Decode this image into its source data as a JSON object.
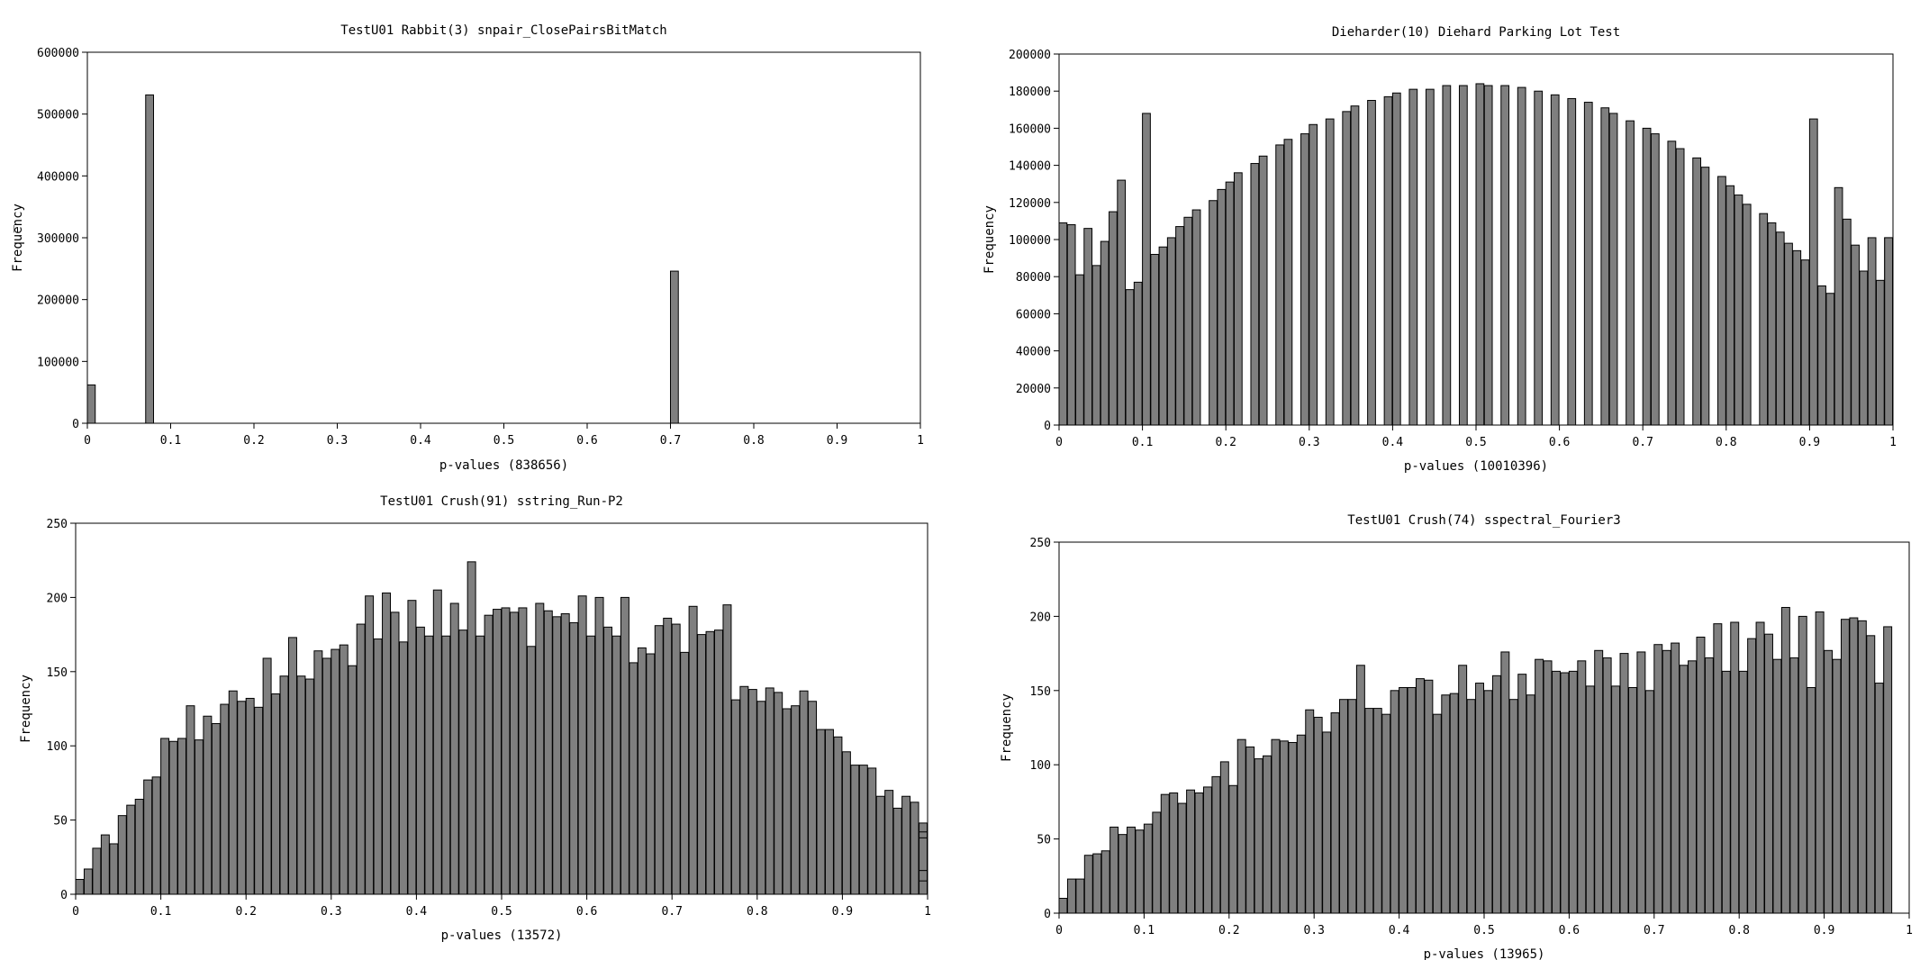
{
  "chart_data": [
    {
      "type": "bar",
      "title": "TestU01 Rabbit(3) snpair_ClosePairsBitMatch",
      "xlabel": "p-values (838656)",
      "ylabel": "Frequency",
      "ylabel_extra": "_",
      "xlim": [
        0,
        1
      ],
      "ylim": [
        0,
        600000
      ],
      "xticks": [
        "0",
        "0.1",
        "0.2",
        "0.3",
        "0.4",
        "0.5",
        "0.6",
        "0.7",
        "0.8",
        "0.9",
        "1"
      ],
      "yticks": [
        "0",
        "100000",
        "200000",
        "300000",
        "400000",
        "500000",
        "600000"
      ],
      "bin_width": 0.01,
      "bins": [
        {
          "x": 0.0,
          "value": 62000
        },
        {
          "x": 0.07,
          "value": 531000
        },
        {
          "x": 0.7,
          "value": 246000
        }
      ],
      "grid": false,
      "legend": "none",
      "color": "#7f7f7f"
    },
    {
      "type": "bar",
      "title": "Dieharder(10) Diehard Parking Lot Test",
      "xlabel": "p-values (10010396)",
      "ylabel": "Frequency",
      "xlim": [
        0,
        1
      ],
      "ylim": [
        0,
        200000
      ],
      "xticks": [
        "0",
        "0.1",
        "0.2",
        "0.3",
        "0.4",
        "0.5",
        "0.6",
        "0.7",
        "0.8",
        "0.9",
        "1"
      ],
      "yticks": [
        "0",
        "20000",
        "40000",
        "60000",
        "80000",
        "100000",
        "120000",
        "140000",
        "160000",
        "180000",
        "200000"
      ],
      "bin_width": 0.01,
      "bins": [
        {
          "x": 0.0,
          "value": 109000
        },
        {
          "x": 0.01,
          "value": 108000
        },
        {
          "x": 0.02,
          "value": 81000
        },
        {
          "x": 0.03,
          "value": 106000
        },
        {
          "x": 0.04,
          "value": 86000
        },
        {
          "x": 0.05,
          "value": 99000
        },
        {
          "x": 0.06,
          "value": 115000
        },
        {
          "x": 0.07,
          "value": 132000
        },
        {
          "x": 0.08,
          "value": 73000
        },
        {
          "x": 0.09,
          "value": 77000
        },
        {
          "x": 0.1,
          "value": 168000
        },
        {
          "x": 0.11,
          "value": 92000
        },
        {
          "x": 0.12,
          "value": 96000
        },
        {
          "x": 0.13,
          "value": 101000
        },
        {
          "x": 0.14,
          "value": 107000
        },
        {
          "x": 0.15,
          "value": 112000
        },
        {
          "x": 0.16,
          "value": 116000
        },
        {
          "x": 0.18,
          "value": 121000
        },
        {
          "x": 0.19,
          "value": 127000
        },
        {
          "x": 0.2,
          "value": 131000
        },
        {
          "x": 0.21,
          "value": 136000
        },
        {
          "x": 0.23,
          "value": 141000
        },
        {
          "x": 0.24,
          "value": 145000
        },
        {
          "x": 0.26,
          "value": 151000
        },
        {
          "x": 0.27,
          "value": 154000
        },
        {
          "x": 0.29,
          "value": 157000
        },
        {
          "x": 0.3,
          "value": 162000
        },
        {
          "x": 0.32,
          "value": 165000
        },
        {
          "x": 0.34,
          "value": 169000
        },
        {
          "x": 0.35,
          "value": 172000
        },
        {
          "x": 0.37,
          "value": 175000
        },
        {
          "x": 0.39,
          "value": 177000
        },
        {
          "x": 0.4,
          "value": 179000
        },
        {
          "x": 0.42,
          "value": 181000
        },
        {
          "x": 0.44,
          "value": 181000
        },
        {
          "x": 0.46,
          "value": 183000
        },
        {
          "x": 0.48,
          "value": 183000
        },
        {
          "x": 0.5,
          "value": 184000
        },
        {
          "x": 0.51,
          "value": 183000
        },
        {
          "x": 0.53,
          "value": 183000
        },
        {
          "x": 0.55,
          "value": 182000
        },
        {
          "x": 0.57,
          "value": 180000
        },
        {
          "x": 0.59,
          "value": 178000
        },
        {
          "x": 0.61,
          "value": 176000
        },
        {
          "x": 0.63,
          "value": 174000
        },
        {
          "x": 0.65,
          "value": 171000
        },
        {
          "x": 0.66,
          "value": 168000
        },
        {
          "x": 0.68,
          "value": 164000
        },
        {
          "x": 0.7,
          "value": 160000
        },
        {
          "x": 0.71,
          "value": 157000
        },
        {
          "x": 0.73,
          "value": 153000
        },
        {
          "x": 0.74,
          "value": 149000
        },
        {
          "x": 0.76,
          "value": 144000
        },
        {
          "x": 0.77,
          "value": 139000
        },
        {
          "x": 0.79,
          "value": 134000
        },
        {
          "x": 0.8,
          "value": 129000
        },
        {
          "x": 0.81,
          "value": 124000
        },
        {
          "x": 0.82,
          "value": 119000
        },
        {
          "x": 0.84,
          "value": 114000
        },
        {
          "x": 0.85,
          "value": 109000
        },
        {
          "x": 0.86,
          "value": 104000
        },
        {
          "x": 0.87,
          "value": 98000
        },
        {
          "x": 0.88,
          "value": 94000
        },
        {
          "x": 0.89,
          "value": 89000
        },
        {
          "x": 0.9,
          "value": 165000
        },
        {
          "x": 0.91,
          "value": 75000
        },
        {
          "x": 0.92,
          "value": 71000
        },
        {
          "x": 0.93,
          "value": 128000
        },
        {
          "x": 0.94,
          "value": 111000
        },
        {
          "x": 0.95,
          "value": 97000
        },
        {
          "x": 0.96,
          "value": 83000
        },
        {
          "x": 0.97,
          "value": 101000
        },
        {
          "x": 0.98,
          "value": 78000
        },
        {
          "x": 0.99,
          "value": 101000
        },
        {
          "x": 1.0,
          "value": 101000
        }
      ],
      "grid": false,
      "legend": "none",
      "color": "#7f7f7f"
    },
    {
      "type": "bar",
      "title": "TestU01 Crush(91) sstring_Run-P2",
      "xlabel": "p-values (13572)",
      "ylabel": "Frequency",
      "xlim": [
        0,
        1
      ],
      "ylim": [
        0,
        250
      ],
      "xticks": [
        "0",
        "0.1",
        "0.2",
        "0.3",
        "0.4",
        "0.5",
        "0.6",
        "0.7",
        "0.8",
        "0.9",
        "1"
      ],
      "yticks": [
        "0",
        "50",
        "100",
        "150",
        "200",
        "250"
      ],
      "bin_width": 0.01,
      "values": [
        10,
        17,
        31,
        40,
        34,
        53,
        60,
        64,
        77,
        79,
        105,
        103,
        105,
        127,
        104,
        120,
        115,
        128,
        137,
        130,
        132,
        126,
        159,
        135,
        147,
        173,
        147,
        145,
        164,
        159,
        165,
        168,
        154,
        182,
        201,
        172,
        203,
        190,
        170,
        198,
        180,
        174,
        205,
        174,
        196,
        178,
        224,
        174,
        188,
        192,
        193,
        190,
        193,
        167,
        196,
        191,
        187,
        189,
        183,
        201,
        174,
        200,
        180,
        174,
        200,
        156,
        166,
        162,
        181,
        186,
        182,
        163,
        194,
        175,
        177,
        178,
        195,
        131,
        140,
        138,
        130,
        139,
        136,
        125,
        127,
        137,
        130,
        111,
        111,
        106,
        96,
        87,
        87,
        85,
        66,
        70,
        58,
        66,
        62,
        48,
        42,
        38,
        16,
        9
      ]
    },
    {
      "type": "bar",
      "title": "TestU01 Crush(74) sspectral_Fourier3",
      "xlabel": "p-values (13965)",
      "ylabel": "Frequency",
      "xlim": [
        0,
        1
      ],
      "ylim": [
        0,
        250
      ],
      "xticks": [
        "0",
        "0.1",
        "0.2",
        "0.3",
        "0.4",
        "0.5",
        "0.6",
        "0.7",
        "0.8",
        "0.9",
        "1"
      ],
      "yticks": [
        "0",
        "50",
        "100",
        "150",
        "200",
        "250"
      ],
      "bin_width": 0.01,
      "values": [
        10,
        23,
        23,
        39,
        40,
        42,
        58,
        53,
        58,
        56,
        60,
        68,
        80,
        81,
        74,
        83,
        81,
        85,
        92,
        102,
        86,
        117,
        112,
        104,
        106,
        117,
        116,
        115,
        120,
        137,
        132,
        122,
        135,
        144,
        144,
        167,
        138,
        138,
        134,
        150,
        152,
        152,
        158,
        157,
        134,
        147,
        148,
        167,
        144,
        155,
        150,
        160,
        176,
        144,
        161,
        147,
        171,
        170,
        163,
        162,
        163,
        170,
        153,
        177,
        172,
        153,
        175,
        152,
        176,
        150,
        181,
        177,
        182,
        167,
        170,
        186,
        172,
        195,
        163,
        196,
        163,
        185,
        196,
        188,
        171,
        206,
        172,
        200,
        152,
        203,
        177,
        171,
        198,
        199,
        197,
        187,
        155,
        193
      ]
    }
  ]
}
